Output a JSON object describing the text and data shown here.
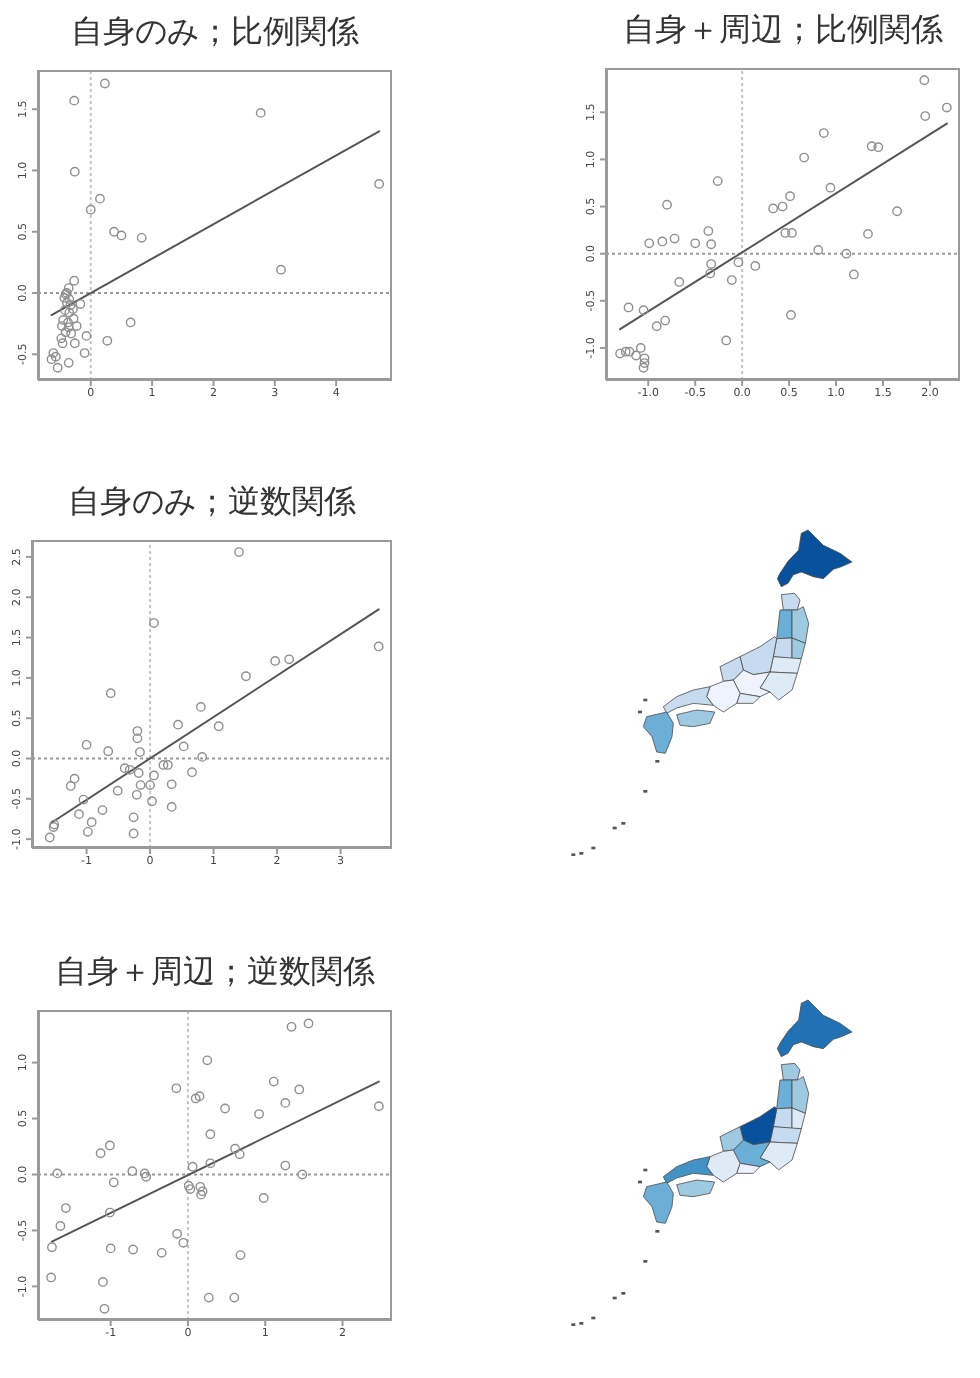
{
  "chart_data": [
    {
      "type": "scatter",
      "title": "自身のみ；比例関係",
      "series": [
        {
          "type": "scatter",
          "color": "#8f8f8f",
          "marker": "circle",
          "x": [
            0.23,
            -0.27,
            2.77,
            -0.26,
            4.7,
            0.15,
            0.0,
            0.38,
            0.5,
            0.83,
            3.1,
            -0.27,
            -0.36,
            -0.41,
            -0.43,
            -0.35,
            -0.39,
            -0.33,
            -0.17,
            -0.42,
            -0.35,
            -0.28,
            -0.45,
            -0.37,
            -0.47,
            -0.36,
            -0.23,
            -0.41,
            -0.32,
            -0.48,
            -0.26,
            -0.46,
            -0.07,
            -0.1,
            -0.61,
            -0.57,
            -0.64,
            -0.36,
            -0.54,
            0.27,
            0.65,
            -0.39,
            -0.29
          ],
          "values": [
            1.71,
            1.57,
            1.47,
            0.99,
            0.89,
            0.77,
            0.68,
            0.5,
            0.47,
            0.45,
            0.19,
            0.1,
            0.04,
            -0.01,
            -0.04,
            -0.05,
            -0.08,
            -0.1,
            -0.09,
            -0.14,
            -0.16,
            -0.21,
            -0.22,
            -0.24,
            -0.27,
            -0.28,
            -0.27,
            -0.32,
            -0.33,
            -0.37,
            -0.41,
            -0.41,
            -0.35,
            -0.49,
            -0.49,
            -0.52,
            -0.54,
            -0.57,
            -0.61,
            -0.39,
            -0.24,
            0.0,
            -0.13
          ]
        },
        {
          "type": "line",
          "color": "#555555",
          "x": [
            -0.64,
            4.7
          ],
          "values": [
            -0.18,
            1.32
          ]
        }
      ],
      "xlim": [
        -0.86,
        4.91
      ],
      "ylim": [
        -0.71,
        1.82
      ],
      "xticks": [
        0,
        1,
        2,
        3,
        4
      ],
      "yticks": [
        -0.5,
        {
          "value": 0,
          "label": "0.0"
        },
        0.5,
        {
          "value": 1,
          "label": "1.0"
        },
        1.5
      ],
      "ref_lines": [
        {
          "axis": "x",
          "value": 0,
          "color": "#c4c4c4",
          "line_style": "dotted"
        },
        {
          "axis": "y",
          "value": 0,
          "color": "#9a9a9a",
          "line_style": "dotted"
        }
      ]
    },
    {
      "type": "scatter",
      "title": "自身＋周辺；比例関係",
      "series": [
        {
          "type": "scatter",
          "color": "#8f8f8f",
          "marker": "circle",
          "x": [
            1.94,
            2.18,
            1.95,
            0.87,
            1.38,
            1.45,
            0.66,
            -0.26,
            0.94,
            0.51,
            -0.8,
            0.43,
            0.33,
            1.65,
            -0.36,
            0.46,
            0.53,
            1.34,
            -0.72,
            -0.85,
            -0.99,
            -0.5,
            -0.33,
            0.81,
            1.11,
            -0.04,
            -0.33,
            0.14,
            -0.34,
            1.19,
            -0.11,
            -0.67,
            -1.21,
            -1.05,
            0.52,
            -0.82,
            -0.91,
            -0.17,
            -1.3,
            -1.24,
            -1.2,
            -1.13,
            -1.08,
            -1.04,
            -1.04,
            -1.05
          ],
          "values": [
            1.84,
            1.55,
            1.46,
            1.28,
            1.14,
            1.13,
            1.02,
            0.77,
            0.7,
            0.61,
            0.52,
            0.5,
            0.48,
            0.45,
            0.24,
            0.22,
            0.22,
            0.21,
            0.16,
            0.13,
            0.11,
            0.11,
            0.1,
            0.04,
            0.0,
            -0.09,
            -0.11,
            -0.13,
            -0.21,
            -0.22,
            -0.28,
            -0.3,
            -0.57,
            -0.6,
            -0.65,
            -0.71,
            -0.77,
            -0.92,
            -1.06,
            -1.04,
            -1.04,
            -1.08,
            -1.0,
            -1.11,
            -1.16,
            -1.21
          ]
        },
        {
          "type": "line",
          "color": "#555555",
          "x": [
            -1.3,
            2.18
          ],
          "values": [
            -0.8,
            1.38
          ]
        }
      ],
      "xlim": [
        -1.45,
        2.32
      ],
      "ylim": [
        -1.34,
        1.97
      ],
      "xticks": [
        {
          "value": -1,
          "label": "-1.0"
        },
        -0.5,
        {
          "value": 0,
          "label": "0.0"
        },
        0.5,
        {
          "value": 1,
          "label": "1.0"
        },
        1.5,
        {
          "value": 2,
          "label": "2.0"
        }
      ],
      "yticks": [
        {
          "value": -1,
          "label": "-1.0"
        },
        -0.5,
        {
          "value": 0,
          "label": "0.0"
        },
        0.5,
        {
          "value": 1,
          "label": "1.0"
        },
        1.5
      ],
      "ref_lines": [
        {
          "axis": "x",
          "value": 0,
          "color": "#c4c4c4",
          "line_style": "dotted"
        },
        {
          "axis": "y",
          "value": 0,
          "color": "#9a9a9a",
          "line_style": "dotted"
        }
      ]
    },
    {
      "type": "scatter",
      "title": "自身のみ；逆数関係",
      "series": [
        {
          "type": "scatter",
          "color": "#8f8f8f",
          "marker": "circle",
          "x": [
            1.4,
            0.06,
            3.6,
            1.97,
            2.19,
            1.51,
            -0.62,
            0.8,
            0.44,
            1.08,
            -0.2,
            -0.2,
            -1.0,
            0.53,
            -0.66,
            -0.16,
            0.82,
            -0.4,
            -0.32,
            -0.18,
            0.06,
            0.21,
            0.28,
            0.66,
            -1.19,
            -1.25,
            -0.15,
            0.34,
            -0.51,
            -0.21,
            0.0,
            -1.05,
            0.03,
            0.34,
            -0.75,
            -1.12,
            -0.26,
            -0.92,
            -1.51,
            -1.52,
            -0.98,
            -0.26,
            -1.58
          ],
          "values": [
            2.56,
            1.68,
            1.39,
            1.21,
            1.23,
            1.02,
            0.81,
            0.64,
            0.42,
            0.4,
            0.34,
            0.25,
            0.17,
            0.15,
            0.09,
            0.08,
            0.02,
            -0.12,
            -0.14,
            -0.18,
            -0.21,
            -0.08,
            -0.08,
            -0.17,
            -0.25,
            -0.34,
            -0.33,
            -0.32,
            -0.4,
            -0.45,
            -0.33,
            -0.51,
            -0.53,
            -0.6,
            -0.64,
            -0.69,
            -0.73,
            -0.79,
            -0.82,
            -0.85,
            -0.91,
            -0.93,
            -0.98
          ]
        },
        {
          "type": "line",
          "color": "#555555",
          "x": [
            -1.56,
            3.6
          ],
          "values": [
            -0.8,
            1.85
          ]
        }
      ],
      "xlim": [
        -1.86,
        3.81
      ],
      "ylim": [
        -1.11,
        2.71
      ],
      "xticks": [
        -1,
        0,
        1,
        2,
        3
      ],
      "yticks": [
        {
          "value": -1,
          "label": "-1.0"
        },
        -0.5,
        {
          "value": 0,
          "label": "0.0"
        },
        0.5,
        {
          "value": 1,
          "label": "1.0"
        },
        1.5,
        {
          "value": 2,
          "label": "2.0"
        },
        2.5
      ],
      "ref_lines": [
        {
          "axis": "x",
          "value": 0,
          "color": "#c4c4c4",
          "line_style": "dotted"
        },
        {
          "axis": "y",
          "value": 0,
          "color": "#9a9a9a",
          "line_style": "dotted"
        }
      ]
    },
    {
      "type": "scatter",
      "title": "自身＋周辺；逆数関係",
      "series": [
        {
          "type": "scatter",
          "color": "#8f8f8f",
          "marker": "circle",
          "x": [
            1.56,
            1.34,
            0.25,
            1.11,
            -0.15,
            0.15,
            0.1,
            1.44,
            1.26,
            2.47,
            0.48,
            0.92,
            0.29,
            -1.01,
            -1.13,
            0.61,
            0.67,
            0.29,
            0.06,
            1.26,
            -0.72,
            -0.56,
            -0.54,
            -1.69,
            1.48,
            -0.96,
            0.01,
            0.03,
            0.16,
            0.19,
            0.17,
            0.98,
            -1.58,
            -1.01,
            -1.65,
            -0.14,
            -0.06,
            -1.76,
            -1.0,
            -0.71,
            -0.34,
            0.68,
            -1.77,
            -1.1,
            0.27,
            0.6,
            -1.08
          ],
          "values": [
            1.35,
            1.32,
            1.02,
            0.83,
            0.77,
            0.7,
            0.68,
            0.76,
            0.64,
            0.61,
            0.59,
            0.54,
            0.36,
            0.26,
            0.19,
            0.23,
            0.18,
            0.1,
            0.07,
            0.08,
            0.03,
            0.01,
            -0.02,
            0.01,
            0.0,
            -0.07,
            -0.1,
            -0.13,
            -0.11,
            -0.15,
            -0.18,
            -0.21,
            -0.3,
            -0.34,
            -0.46,
            -0.53,
            -0.61,
            -0.65,
            -0.66,
            -0.67,
            -0.7,
            -0.72,
            -0.92,
            -0.96,
            -1.1,
            -1.1,
            -1.2
          ]
        },
        {
          "type": "line",
          "color": "#555555",
          "x": [
            -1.76,
            2.47
          ],
          "values": [
            -0.6,
            0.83
          ]
        }
      ],
      "xlim": [
        -1.94,
        2.64
      ],
      "ylim": [
        -1.3,
        1.47
      ],
      "xticks": [
        -1,
        0,
        1,
        2
      ],
      "yticks": [
        {
          "value": -1,
          "label": "-1.0"
        },
        -0.5,
        {
          "value": 0,
          "label": "0.0"
        },
        0.5,
        {
          "value": 1,
          "label": "1.0"
        }
      ],
      "ref_lines": [
        {
          "axis": "x",
          "value": 0,
          "color": "#c4c4c4",
          "line_style": "dotted"
        },
        {
          "axis": "y",
          "value": 0,
          "color": "#9a9a9a",
          "line_style": "dotted"
        }
      ]
    }
  ]
}
